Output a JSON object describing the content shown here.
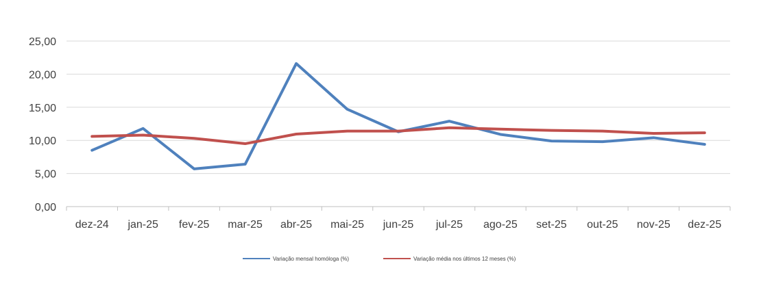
{
  "chart_data": {
    "type": "line",
    "title": "",
    "xlabel": "",
    "ylabel": "",
    "ylim": [
      0,
      25
    ],
    "yticks": [
      "0,00",
      "5,00",
      "10,00",
      "15,00",
      "20,00",
      "25,00"
    ],
    "grid": true,
    "legend_position": "bottom",
    "categories": [
      "dez-24",
      "jan-25",
      "fev-25",
      "mar-25",
      "abr-25",
      "mai-25",
      "jun-25",
      "jul-25",
      "ago-25",
      "set-25",
      "out-25",
      "nov-25",
      "dez-25"
    ],
    "series": [
      {
        "name": "Variação mensal homóloga (%)",
        "color": "#4F81BD",
        "values": [
          8.5,
          11.8,
          5.7,
          6.4,
          21.6,
          14.7,
          11.3,
          12.9,
          10.9,
          9.9,
          9.8,
          10.4,
          9.4
        ]
      },
      {
        "name": "Variação média nos últimos 12 meses (%)",
        "color": "#C0504D",
        "values": [
          10.6,
          10.8,
          10.3,
          9.5,
          10.95,
          11.4,
          11.4,
          11.9,
          11.7,
          11.5,
          11.4,
          11.05,
          11.15
        ]
      }
    ]
  }
}
